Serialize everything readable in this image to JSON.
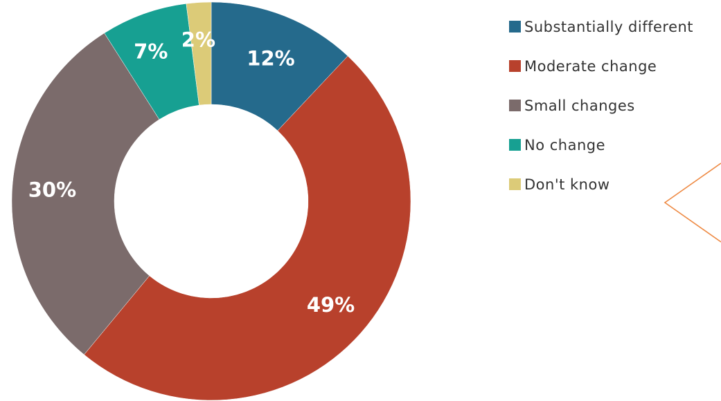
{
  "chart_data": {
    "type": "pie",
    "style": "donut",
    "title": "",
    "categories": [
      "Substantially different",
      "Moderate change",
      "Small changes",
      "No change",
      "Don't know"
    ],
    "values": [
      12,
      49,
      30,
      7,
      2
    ],
    "labels": [
      "12%",
      "49%",
      "30%",
      "7%",
      "2%"
    ],
    "colors": [
      "#256a8c",
      "#b8412c",
      "#7b6b6b",
      "#17a092",
      "#dccb78"
    ],
    "unit": "%",
    "legend_position": "right",
    "start_angle_deg": 0,
    "direction": "clockwise"
  },
  "callout_color": "#ee8a44"
}
